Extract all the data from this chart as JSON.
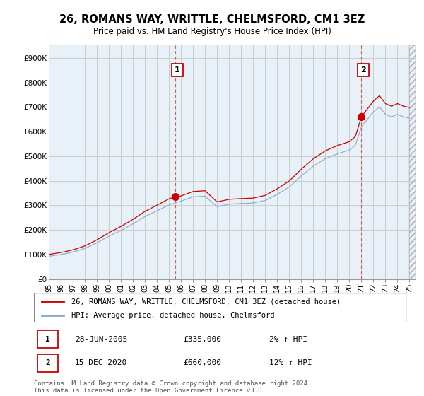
{
  "title": "26, ROMANS WAY, WRITTLE, CHELMSFORD, CM1 3EZ",
  "subtitle": "Price paid vs. HM Land Registry's House Price Index (HPI)",
  "ylabel_ticks": [
    "£0",
    "£100K",
    "£200K",
    "£300K",
    "£400K",
    "£500K",
    "£600K",
    "£700K",
    "£800K",
    "£900K"
  ],
  "ytick_values": [
    0,
    100000,
    200000,
    300000,
    400000,
    500000,
    600000,
    700000,
    800000,
    900000
  ],
  "ylim": [
    0,
    950000
  ],
  "xlim_start": 1995.0,
  "xlim_end": 2025.5,
  "background_color": "#ffffff",
  "plot_bg_color": "#e8f0f8",
  "grid_color": "#cccccc",
  "line1_color": "#cc0000",
  "line2_color": "#88aacc",
  "vline_color": "#cc4444",
  "sale1_x": 2005.49,
  "sale1_y": 335000,
  "sale2_x": 2020.96,
  "sale2_y": 660000,
  "hatch_start": 2025.0,
  "annotation1_label": "1",
  "annotation2_label": "2",
  "legend_line1": "26, ROMANS WAY, WRITTLE, CHELMSFORD, CM1 3EZ (detached house)",
  "legend_line2": "HPI: Average price, detached house, Chelmsford",
  "footer": "Contains HM Land Registry data © Crown copyright and database right 2024.\nThis data is licensed under the Open Government Licence v3.0.",
  "annotation_table": [
    {
      "num": "1",
      "date": "28-JUN-2005",
      "price": "£335,000",
      "hpi": "2% ↑ HPI"
    },
    {
      "num": "2",
      "date": "15-DEC-2020",
      "price": "£660,000",
      "hpi": "12% ↑ HPI"
    }
  ]
}
